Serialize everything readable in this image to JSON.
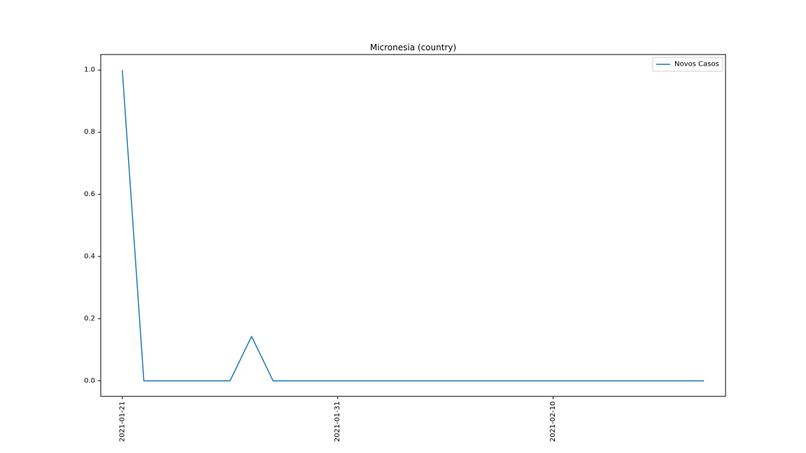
{
  "chart_data": {
    "type": "line",
    "title": "Micronesia (country)",
    "xlabel": "",
    "ylabel": "",
    "legend_position": "top-right",
    "grid": false,
    "x_start": "2021-01-21",
    "xlim": [
      "2021-01-20",
      "2021-02-18"
    ],
    "ylim": [
      -0.05,
      1.05
    ],
    "x_ticks": [
      "2021-01-21",
      "2021-01-31",
      "2021-02-10"
    ],
    "y_ticks": [
      "0.0",
      "0.2",
      "0.4",
      "0.6",
      "0.8",
      "1.0"
    ],
    "x": [
      "2021-01-21",
      "2021-01-22",
      "2021-01-23",
      "2021-01-24",
      "2021-01-25",
      "2021-01-26",
      "2021-01-27",
      "2021-01-28",
      "2021-01-29",
      "2021-01-30",
      "2021-01-31",
      "2021-02-01",
      "2021-02-02",
      "2021-02-03",
      "2021-02-04",
      "2021-02-05",
      "2021-02-06",
      "2021-02-07",
      "2021-02-08",
      "2021-02-09",
      "2021-02-10",
      "2021-02-11",
      "2021-02-12",
      "2021-02-13",
      "2021-02-14",
      "2021-02-15",
      "2021-02-16",
      "2021-02-17"
    ],
    "series": [
      {
        "name": "Novos Casos",
        "color": "#1f77b4",
        "values": [
          1.0,
          0,
          0,
          0,
          0,
          0,
          0.143,
          0,
          0,
          0,
          0,
          0,
          0,
          0,
          0,
          0,
          0,
          0,
          0,
          0,
          0,
          0,
          0,
          0,
          0,
          0,
          0,
          0
        ]
      }
    ]
  }
}
